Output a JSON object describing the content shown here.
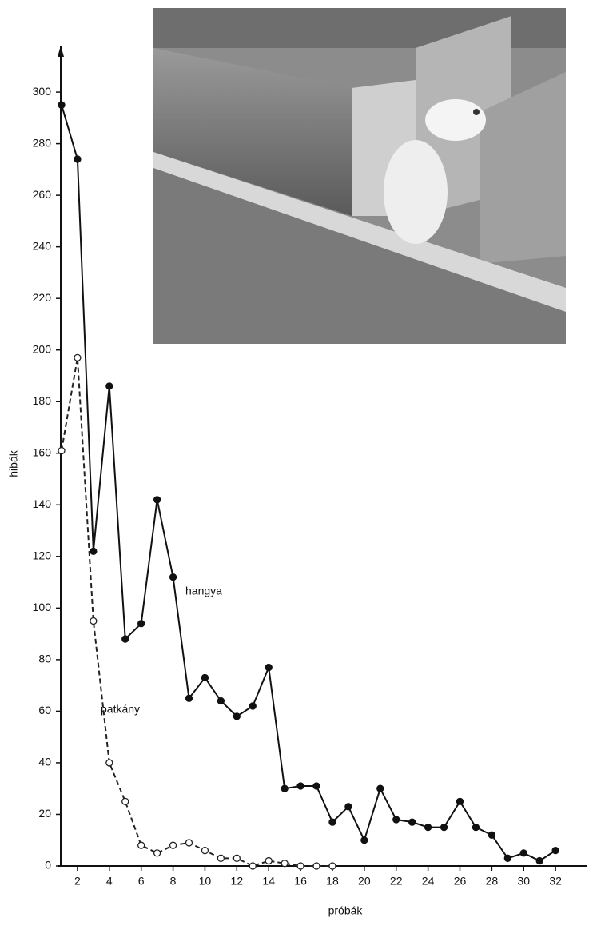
{
  "chart_data": {
    "type": "line",
    "x_label": "próbák",
    "y_label": "hibák",
    "xlim": [
      0.75,
      34
    ],
    "ylim": [
      0,
      318
    ],
    "xticks": [
      2,
      4,
      6,
      8,
      10,
      12,
      14,
      16,
      18,
      20,
      22,
      24,
      26,
      28,
      30,
      32
    ],
    "yticks": [
      0,
      20,
      40,
      60,
      80,
      100,
      120,
      140,
      160,
      180,
      200,
      220,
      240,
      260,
      280,
      300
    ],
    "series": [
      {
        "name": "hangya",
        "color": "#111111",
        "line_style": "solid",
        "marker": "filled",
        "x": [
          1,
          2,
          3,
          4,
          5,
          6,
          7,
          8,
          9,
          10,
          11,
          12,
          13,
          14,
          15,
          16,
          17,
          18,
          19,
          20,
          21,
          22,
          23,
          24,
          25,
          26,
          27,
          28,
          29,
          30,
          31,
          32
        ],
        "values": [
          295,
          274,
          122,
          186,
          88,
          94,
          142,
          112,
          65,
          73,
          64,
          58,
          62,
          77,
          30,
          31,
          31,
          17,
          23,
          10,
          30,
          18,
          17,
          15,
          15,
          25,
          15,
          12,
          3,
          5,
          2,
          6
        ]
      },
      {
        "name": "patkány",
        "color": "#222222",
        "line_style": "dashed",
        "marker": "open",
        "x": [
          1,
          2,
          3,
          4,
          5,
          6,
          7,
          8,
          9,
          10,
          11,
          12,
          13,
          14,
          15,
          16,
          17,
          18
        ],
        "values": [
          161,
          197,
          95,
          40,
          25,
          8,
          5,
          8,
          9,
          6,
          3,
          3,
          0,
          2,
          1,
          0,
          0,
          0
        ]
      }
    ]
  }
}
